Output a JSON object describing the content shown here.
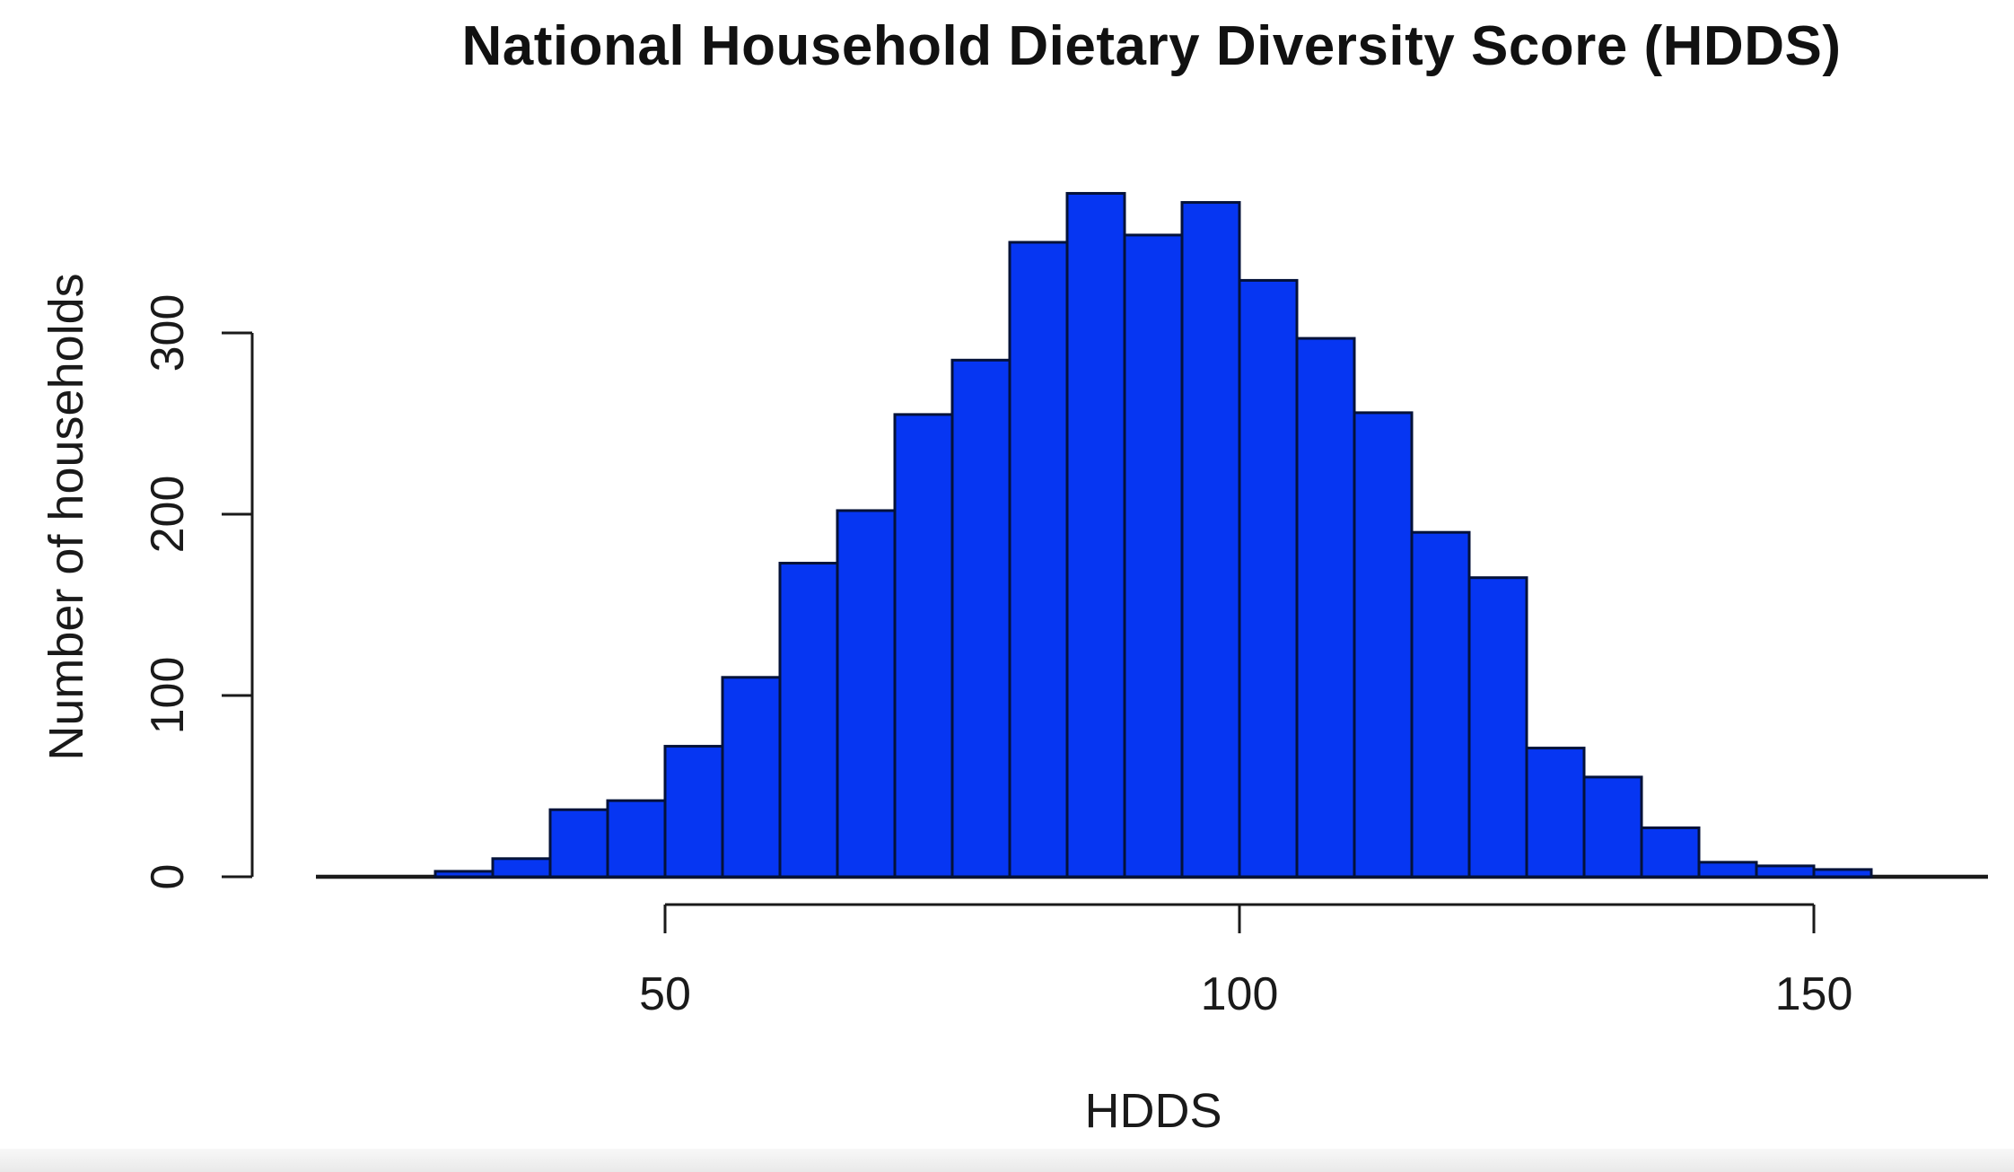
{
  "page": {
    "background": "#ffffff",
    "bottom_strip_color": "#e9e9e9"
  },
  "chart_data": {
    "type": "bar",
    "subtype": "histogram",
    "title": "National Household Dietary Diversity Score (HDDS)",
    "xlabel": "HDDS",
    "ylabel": "Number of households",
    "grid": false,
    "legend": null,
    "bar_fill": "#0636f2",
    "bar_border": "#04123a",
    "axis_color": "#1a1a1a",
    "bin_width": 5,
    "xlim": [
      20,
      165
    ],
    "ylim": [
      0,
      390
    ],
    "x_ticks": [
      50,
      100,
      150
    ],
    "y_ticks": [
      0,
      100,
      200,
      300
    ],
    "bins": [
      {
        "start": 30,
        "end": 35,
        "count": 3
      },
      {
        "start": 35,
        "end": 40,
        "count": 10
      },
      {
        "start": 40,
        "end": 45,
        "count": 37
      },
      {
        "start": 45,
        "end": 50,
        "count": 42
      },
      {
        "start": 50,
        "end": 55,
        "count": 72
      },
      {
        "start": 55,
        "end": 60,
        "count": 110
      },
      {
        "start": 60,
        "end": 65,
        "count": 173
      },
      {
        "start": 65,
        "end": 70,
        "count": 202
      },
      {
        "start": 70,
        "end": 75,
        "count": 255
      },
      {
        "start": 75,
        "end": 80,
        "count": 285
      },
      {
        "start": 80,
        "end": 85,
        "count": 350
      },
      {
        "start": 85,
        "end": 90,
        "count": 377
      },
      {
        "start": 90,
        "end": 95,
        "count": 354
      },
      {
        "start": 95,
        "end": 100,
        "count": 372
      },
      {
        "start": 100,
        "end": 105,
        "count": 329
      },
      {
        "start": 105,
        "end": 110,
        "count": 297
      },
      {
        "start": 110,
        "end": 115,
        "count": 256
      },
      {
        "start": 115,
        "end": 120,
        "count": 190
      },
      {
        "start": 120,
        "end": 125,
        "count": 165
      },
      {
        "start": 125,
        "end": 130,
        "count": 71
      },
      {
        "start": 130,
        "end": 135,
        "count": 55
      },
      {
        "start": 135,
        "end": 140,
        "count": 27
      },
      {
        "start": 140,
        "end": 145,
        "count": 8
      },
      {
        "start": 145,
        "end": 150,
        "count": 6
      },
      {
        "start": 150,
        "end": 155,
        "count": 4
      }
    ]
  }
}
